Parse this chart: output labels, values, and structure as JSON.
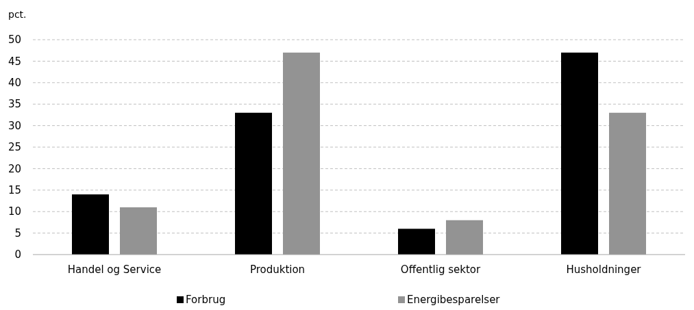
{
  "chart_data": {
    "type": "bar",
    "ylabel": "pct.",
    "categories": [
      "Handel og Service",
      "Produktion",
      "Offentlig sektor",
      "Husholdninger"
    ],
    "series": [
      {
        "name": "Forbrug",
        "color": "#000000",
        "values": [
          14,
          33,
          6,
          47
        ]
      },
      {
        "name": "Energibesparelser",
        "color": "#939393",
        "values": [
          11,
          47,
          8,
          33
        ]
      }
    ],
    "ylim": [
      0,
      50
    ],
    "yticks": [
      0,
      5,
      10,
      15,
      20,
      25,
      30,
      35,
      40,
      45,
      50
    ],
    "grid": "y",
    "legend": "bottom"
  }
}
